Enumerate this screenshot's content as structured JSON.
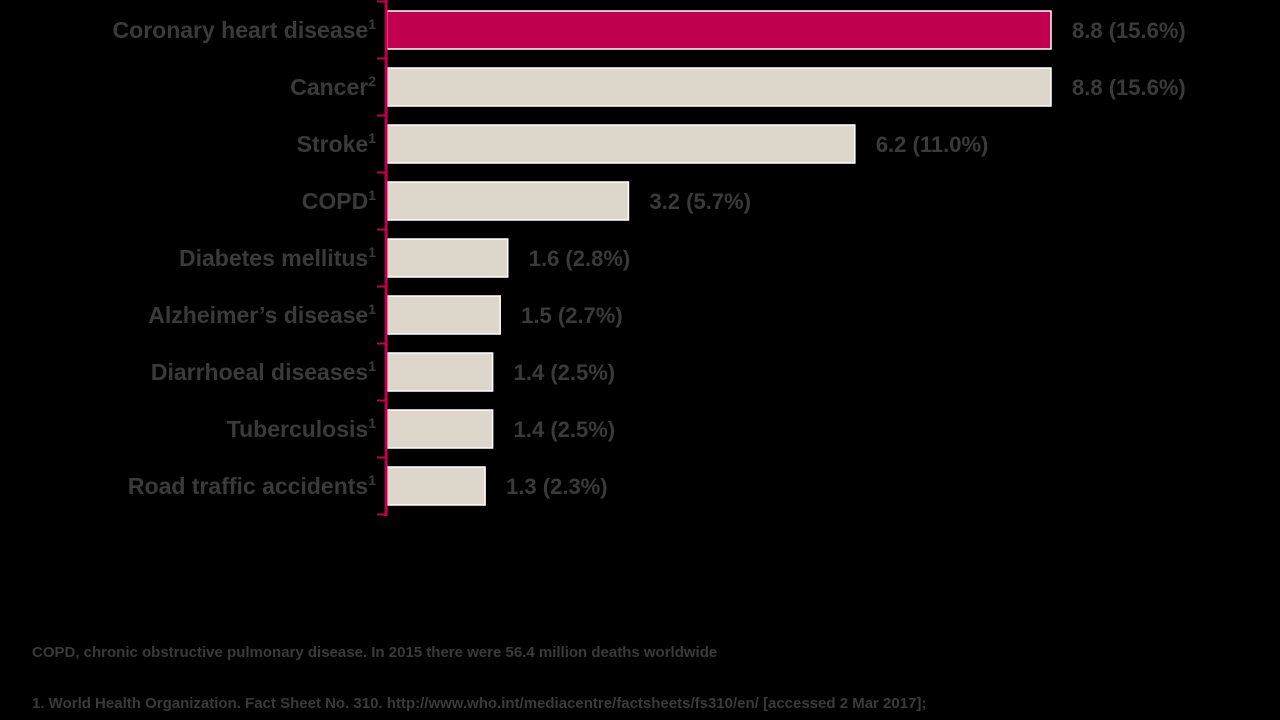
{
  "chart_data": {
    "type": "bar",
    "orientation": "horizontal",
    "categories": [
      "Coronary heart disease",
      "Cancer",
      "Stroke",
      "COPD",
      "Diabetes mellitus",
      "Alzheimer’s disease",
      "Diarrhoeal diseases",
      "Tuberculosis",
      "Road traffic accidents"
    ],
    "reference_marks": [
      "1",
      "2",
      "1",
      "1",
      "1",
      "1",
      "1",
      "1",
      "1"
    ],
    "values": [
      8.8,
      8.8,
      6.2,
      3.2,
      1.6,
      1.5,
      1.4,
      1.4,
      1.3
    ],
    "value_labels": [
      "8.8 (15.6%)",
      "8.8 (15.6%)",
      "6.2 (11.0%)",
      "3.2 (5.7%)",
      "1.6 (2.8%)",
      "1.5 (2.7%)",
      "1.4 (2.5%)",
      "1.4 (2.5%)",
      "1.3 (2.3%)"
    ],
    "highlighted_index": 0,
    "xlim": [
      0,
      8.8
    ],
    "grid": false,
    "colors": {
      "highlight": "#c0004f",
      "highlight_label": "#d4005a",
      "bar": "#dcd6cb",
      "bar_outline": "#ffffff",
      "axis": "#c0004f",
      "text": "#3a3a3a",
      "background": "#000000"
    }
  },
  "footnotes": {
    "abbreviation": "COPD, chronic obstructive pulmonary disease. In 2015 there were 56.4 million deaths worldwide",
    "source": "1. World Health Organization. Fact Sheet No. 310. http://www.who.int/mediacentre/factsheets/fs310/en/ [accessed 2 Mar 2017];"
  }
}
